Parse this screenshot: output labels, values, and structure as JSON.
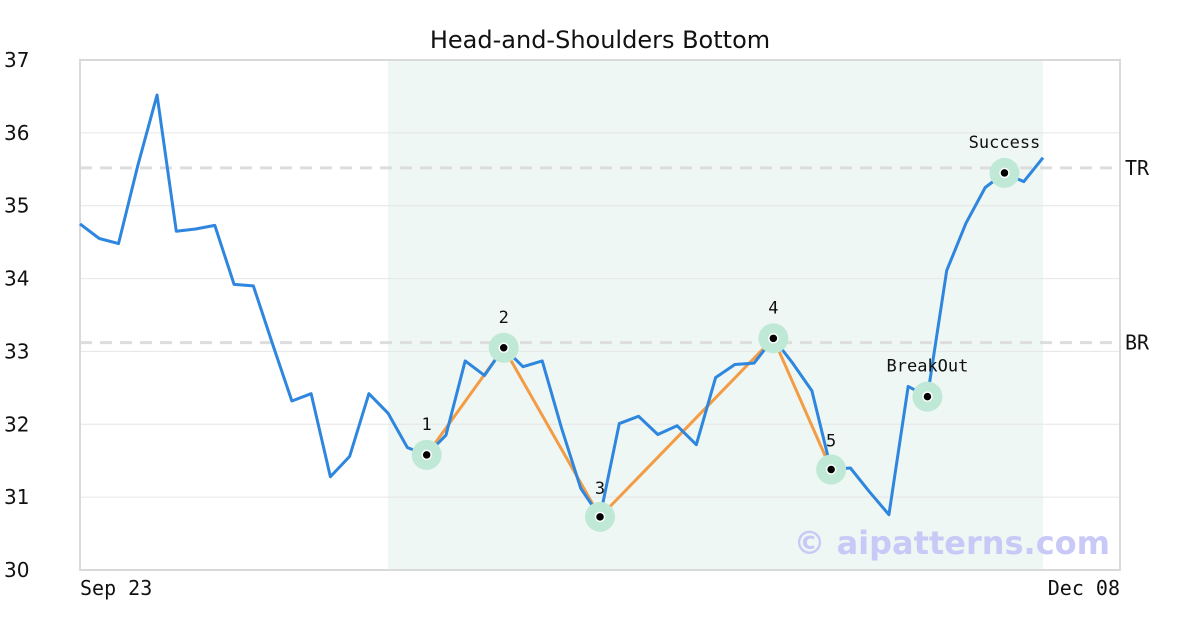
{
  "chart_data": {
    "type": "line",
    "title": "Head-and-Shoulders Bottom",
    "xlabel": "",
    "ylabel": "",
    "ylim": [
      30,
      37
    ],
    "yticks": [
      30,
      31,
      32,
      33,
      34,
      35,
      36,
      37
    ],
    "x_tick_labels": [
      "Sep 23",
      "Dec 08"
    ],
    "grid": "horizontal",
    "series": [
      {
        "values": [
          34.75,
          34.55,
          34.48,
          35.55,
          36.52,
          34.65,
          34.68,
          34.73,
          33.92,
          33.9,
          33.1,
          32.32,
          32.42,
          31.28,
          31.56,
          32.42,
          32.15,
          31.68,
          31.58,
          31.85,
          32.87,
          32.67,
          33.05,
          32.79,
          32.87,
          31.95,
          31.12,
          30.73,
          32.01,
          32.11,
          31.86,
          31.98,
          31.72,
          32.64,
          32.82,
          32.84,
          33.18,
          32.84,
          32.46,
          31.38,
          31.4,
          31.07,
          30.76,
          32.52,
          32.38,
          34.11,
          34.76,
          35.25,
          35.45,
          35.33,
          35.66
        ]
      }
    ],
    "highlight_range": [
      16,
      50
    ],
    "reference_lines": [
      {
        "label": "TR",
        "y": 35.52
      },
      {
        "label": "BR",
        "y": 33.12
      }
    ],
    "pattern_points": [
      {
        "label": "1",
        "x": 18,
        "y": 31.58
      },
      {
        "label": "2",
        "x": 22,
        "y": 33.05
      },
      {
        "label": "3",
        "x": 27,
        "y": 30.73
      },
      {
        "label": "4",
        "x": 36,
        "y": 33.18
      },
      {
        "label": "5",
        "x": 39,
        "y": 31.38
      },
      {
        "label": "BreakOut",
        "x": 44,
        "y": 32.38
      },
      {
        "label": "Success",
        "x": 48,
        "y": 35.45
      }
    ],
    "colors": {
      "price_line": "#2e86de",
      "pattern_line": "#f39c45",
      "highlight": "#eef7f3",
      "marker_halo": "#bfe9d6",
      "reference_line": "#dddddd",
      "grid": "#e6e6e6",
      "frame": "#d9d9d9",
      "watermark": "#c9c9f7"
    }
  },
  "watermark": "© aipatterns.com"
}
